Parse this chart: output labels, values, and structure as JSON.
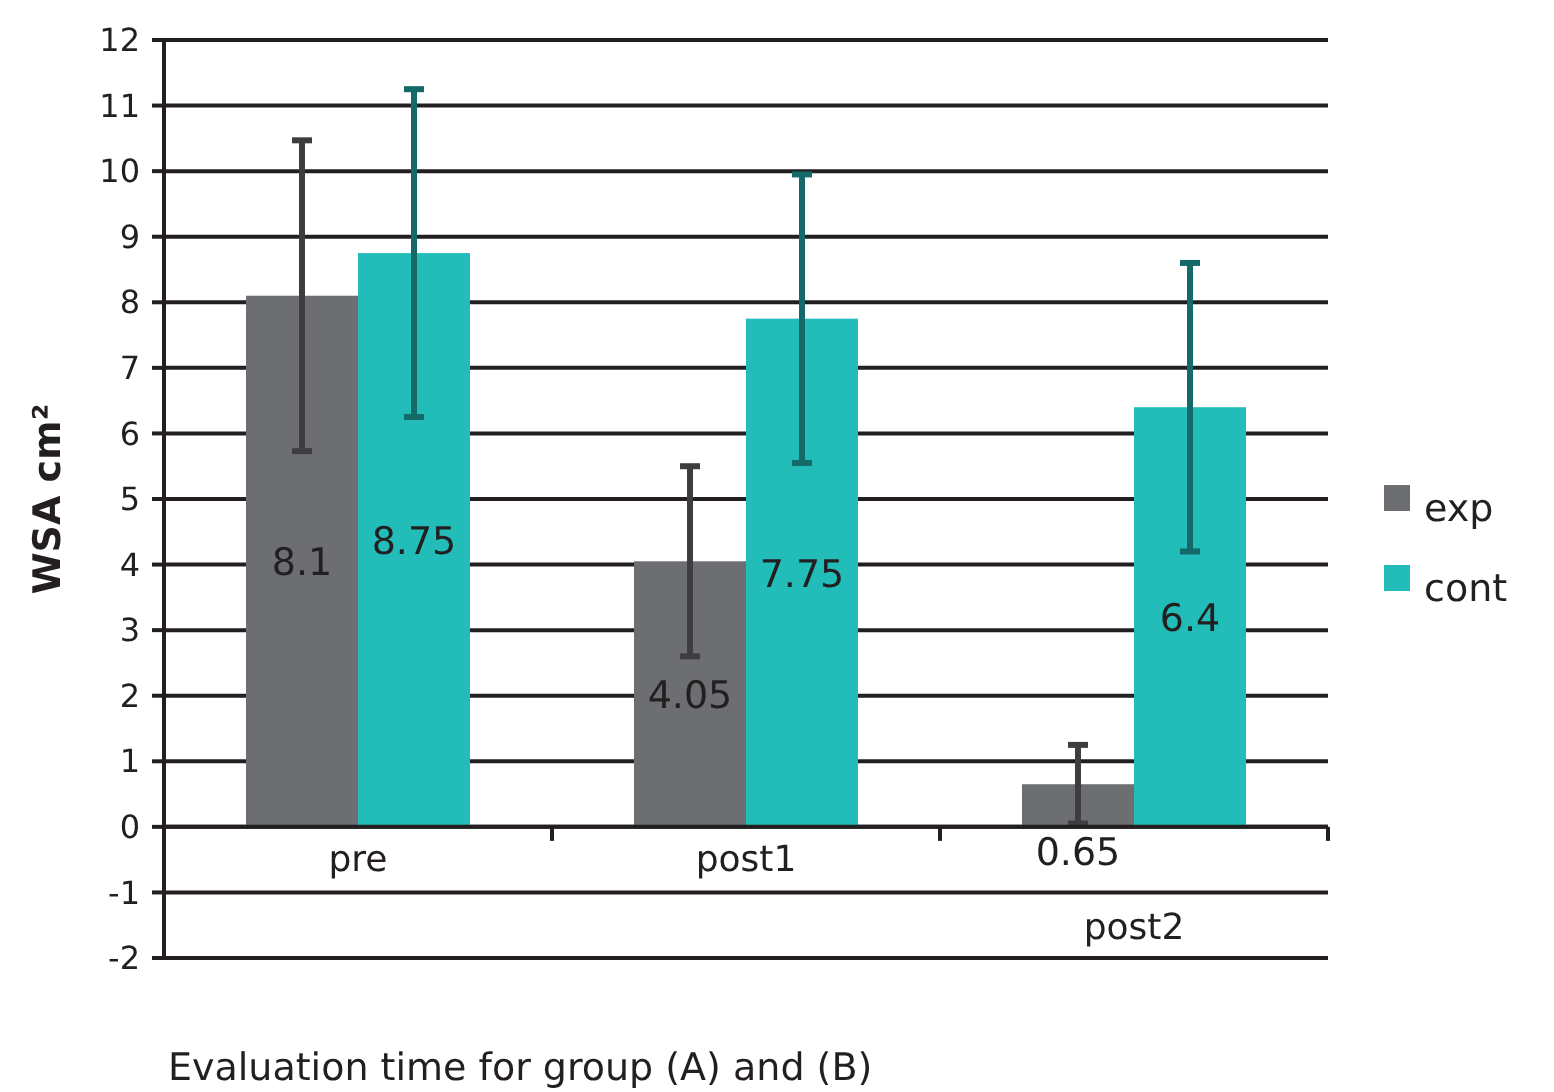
{
  "chart_data": {
    "type": "bar",
    "xlabel": "Evaluation time for group (A) and (B)",
    "ylabel": "WSA cm²",
    "categories": [
      "pre",
      "post1",
      "post2"
    ],
    "series": [
      {
        "name": "exp",
        "color": "#6d6e71",
        "values": [
          8.1,
          4.05,
          0.65
        ],
        "errors": [
          2.37,
          1.45,
          0.6
        ]
      },
      {
        "name": "cont",
        "color": "#22bcb9",
        "values": [
          8.75,
          7.75,
          6.4
        ],
        "errors": [
          2.5,
          2.2,
          2.2
        ]
      }
    ],
    "ylim": [
      -2,
      12
    ],
    "yticks": [
      -2,
      -1,
      0,
      1,
      2,
      3,
      4,
      5,
      6,
      7,
      8,
      9,
      10,
      11,
      12
    ],
    "grid": "y",
    "legend": "right",
    "data_labels": true
  }
}
